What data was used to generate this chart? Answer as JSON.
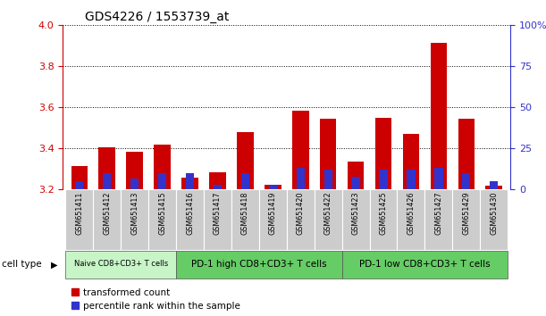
{
  "title": "GDS4226 / 1553739_at",
  "samples": [
    "GSM651411",
    "GSM651412",
    "GSM651413",
    "GSM651415",
    "GSM651416",
    "GSM651417",
    "GSM651418",
    "GSM651419",
    "GSM651420",
    "GSM651422",
    "GSM651423",
    "GSM651425",
    "GSM651426",
    "GSM651427",
    "GSM651429",
    "GSM651430"
  ],
  "red_values": [
    3.315,
    3.405,
    3.385,
    3.42,
    3.26,
    3.285,
    3.48,
    3.225,
    3.585,
    3.545,
    3.335,
    3.55,
    3.47,
    3.915,
    3.545,
    3.22
  ],
  "blue_pct": [
    5,
    10,
    7,
    10,
    10,
    3,
    10,
    3,
    13,
    12,
    8,
    12,
    12,
    13,
    10,
    5
  ],
  "cell_groups": [
    {
      "label": "Naive CD8+CD3+ T cells",
      "start": 0,
      "end": 4
    },
    {
      "label": "PD-1 high CD8+CD3+ T cells",
      "start": 4,
      "end": 10
    },
    {
      "label": "PD-1 low CD8+CD3+ T cells",
      "start": 10,
      "end": 16
    }
  ],
  "ylim_left": [
    3.2,
    4.0
  ],
  "ylim_right": [
    0,
    100
  ],
  "yticks_left": [
    3.2,
    3.4,
    3.6,
    3.8,
    4.0
  ],
  "yticks_right": [
    0,
    25,
    50,
    75,
    100
  ],
  "ytick_labels_right": [
    "0",
    "25",
    "50",
    "75",
    "100%"
  ],
  "bar_color_red": "#CC0000",
  "bar_color_blue": "#3333CC",
  "left_tick_color": "#CC0000",
  "right_tick_color": "#3333CC",
  "cell_type_label": "cell type",
  "legend_red": "transformed count",
  "legend_blue": "percentile rank within the sample",
  "bar_width": 0.6,
  "base_value": 3.2,
  "group_color_light": "#C8F5C8",
  "group_color_dark": "#66CC66",
  "label_bg_color": "#CCCCCC"
}
